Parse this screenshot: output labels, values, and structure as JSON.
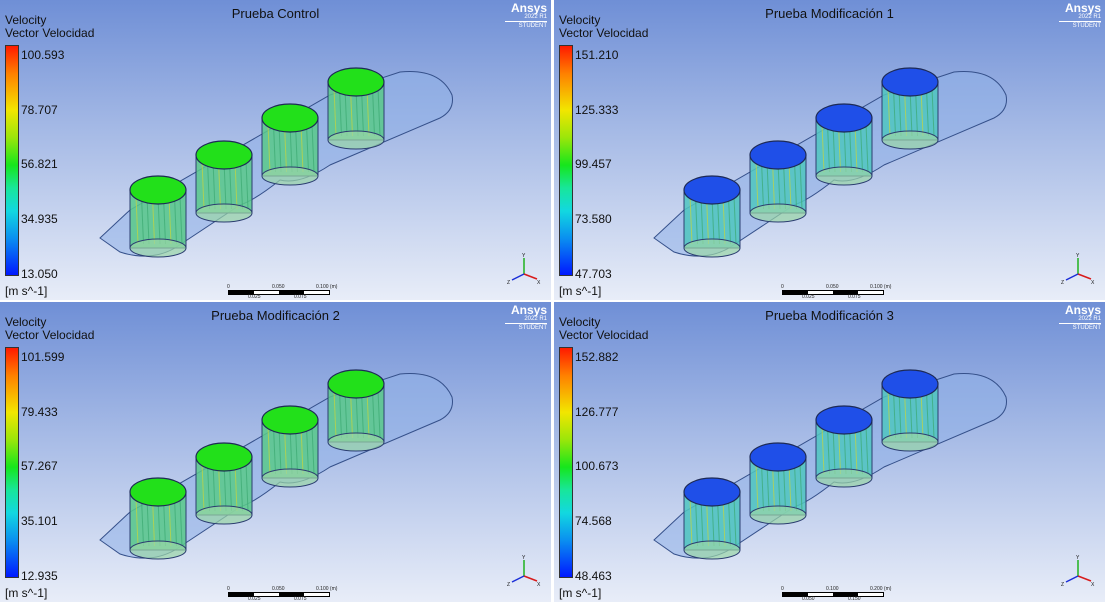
{
  "legend": {
    "title": "Velocity",
    "subtitle": "Vector Velocidad",
    "units": "[m s^-1]"
  },
  "logo": {
    "name": "Ansys",
    "version": "2022 R1",
    "edition": "STUDENT"
  },
  "panels": [
    {
      "title": "Prueba Control",
      "ticks": [
        "100.593",
        "78.707",
        "56.821",
        "34.935",
        "13.050"
      ],
      "scale": {
        "start": "0",
        "mid": "0.050",
        "end": "0.100 (m)",
        "q1": "0.025",
        "q3": "0.075"
      },
      "scheme": "green"
    },
    {
      "title": "Prueba Modificación 1",
      "ticks": [
        "151.210",
        "125.333",
        "99.457",
        "73.580",
        "47.703"
      ],
      "scale": {
        "start": "0",
        "mid": "0.050",
        "end": "0.100 (m)",
        "q1": "0.025",
        "q3": "0.075"
      },
      "scheme": "blue"
    },
    {
      "title": "Prueba Modificación 2",
      "ticks": [
        "101.599",
        "79.433",
        "57.267",
        "35.101",
        "12.935"
      ],
      "scale": {
        "start": "0",
        "mid": "0.050",
        "end": "0.100 (m)",
        "q1": "0.025",
        "q3": "0.075"
      },
      "scheme": "green"
    },
    {
      "title": "Prueba Modificación 3",
      "ticks": [
        "152.882",
        "126.777",
        "100.673",
        "74.568",
        "48.463"
      ],
      "scale": {
        "start": "0",
        "mid": "0.100",
        "end": "0.200 (m)",
        "q1": "0.050",
        "q3": "0.150"
      },
      "scheme": "blue"
    }
  ],
  "colors": {
    "green_inlet": "#22e01a",
    "blue_inlet": "#1f4fe8",
    "manifold": "#8fb0e8"
  },
  "triad_axes": {
    "x": "X",
    "y": "Y",
    "z": "Z"
  }
}
